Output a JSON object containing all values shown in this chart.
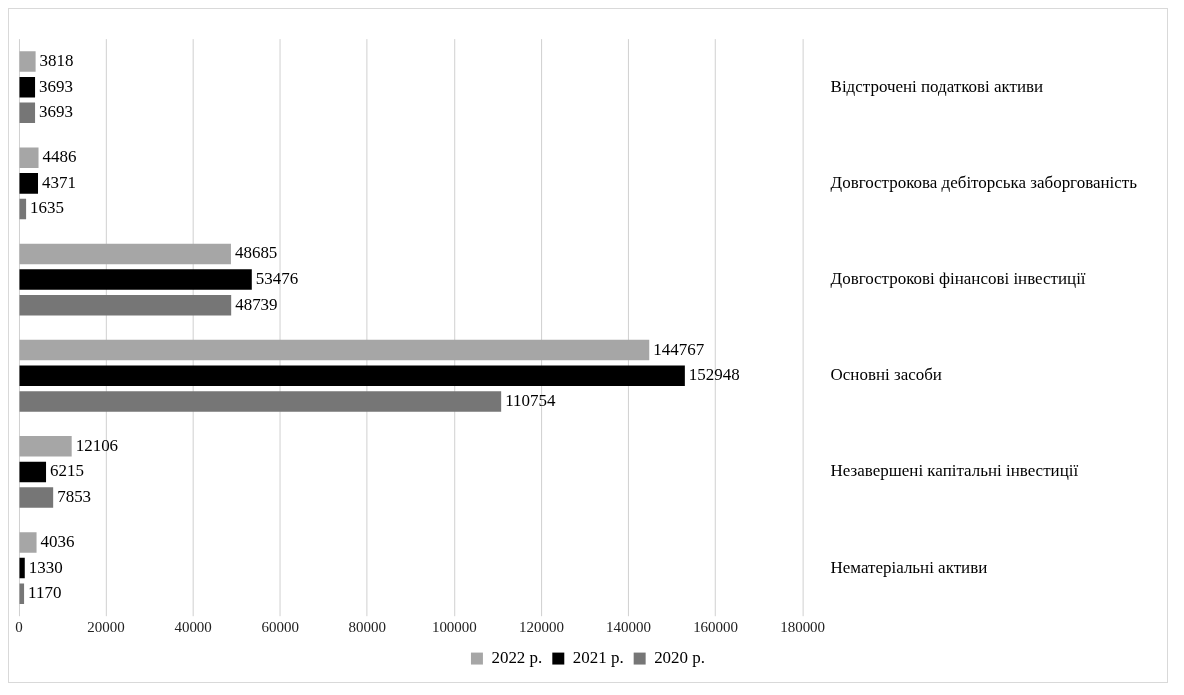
{
  "chart_data": {
    "type": "bar",
    "orientation": "horizontal",
    "categories": [
      "Відстрочені податкові активи",
      "Довгострокова дебіторська заборгованість",
      "Довгострокові фінансові інвестиції",
      "Основні засоби",
      "Незавершені капітальні інвестиції",
      "Нематеріальні активи"
    ],
    "series": [
      {
        "name": "2022 р.",
        "color": "#a6a6a6",
        "values": [
          3818,
          4486,
          48685,
          144767,
          12106,
          4036
        ]
      },
      {
        "name": "2021 р.",
        "color": "#000000",
        "values": [
          3693,
          4371,
          53476,
          152948,
          6215,
          1330
        ]
      },
      {
        "name": "2020 р.",
        "color": "#767676",
        "values": [
          3693,
          1635,
          48739,
          110754,
          7853,
          1170
        ]
      }
    ],
    "xlim": [
      0,
      180000
    ],
    "xticks": [
      0,
      20000,
      40000,
      60000,
      80000,
      100000,
      120000,
      140000,
      160000,
      180000
    ],
    "grid": "x",
    "legend": "bottom",
    "data_labels": true
  }
}
